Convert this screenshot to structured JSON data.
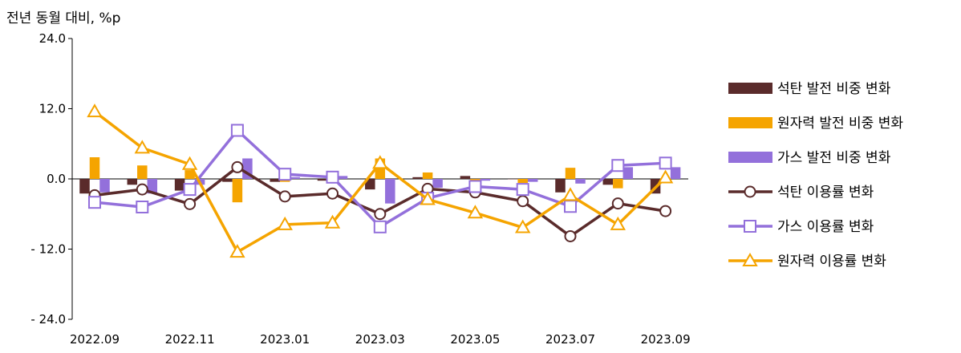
{
  "chart_data": {
    "type": "bar+line",
    "ylabel": "전년 동월 대비, %p",
    "ylim": [
      -24,
      24
    ],
    "yticks": [
      24,
      12,
      0,
      -12,
      -24
    ],
    "ytick_labels": [
      "24.0",
      "12.0",
      "0.0",
      "- 12.0",
      "- 24.0"
    ],
    "categories": [
      "2022.09",
      "2022.10",
      "2022.11",
      "2022.12",
      "2023.01",
      "2023.02",
      "2023.03",
      "2023.04",
      "2023.05",
      "2023.06",
      "2023.07",
      "2023.08",
      "2023.09"
    ],
    "xtick_labels": [
      "2022.09",
      "",
      "2022.11",
      "",
      "2023.01",
      "",
      "2023.03",
      "",
      "2023.05",
      "",
      "2023.07",
      "",
      "2023.09"
    ],
    "bar_series": [
      {
        "name": "석탄 발전 비중 변화",
        "color": "#5a2b2b",
        "values": [
          -2.5,
          -1.0,
          -2.0,
          -0.5,
          -0.5,
          -0.3,
          -1.8,
          0.3,
          0.5,
          0.0,
          -2.3,
          -1.0,
          -2.5
        ]
      },
      {
        "name": "원자력 발전 비중 변화",
        "color": "#f5a400",
        "values": [
          3.7,
          2.3,
          1.5,
          -4.0,
          -0.5,
          -0.3,
          3.5,
          1.1,
          -0.3,
          -0.7,
          1.9,
          -1.6,
          -0.3
        ]
      },
      {
        "name": "가스 발전 비중 변화",
        "color": "#9370db",
        "values": [
          -2.3,
          -2.5,
          -1.0,
          3.5,
          0.3,
          0.5,
          -4.2,
          -1.5,
          -0.3,
          -0.5,
          -0.8,
          2.0,
          2.0
        ]
      }
    ],
    "line_series": [
      {
        "name": "석탄 이용률 변화",
        "color": "#5a2b2b",
        "marker": "circle",
        "values": [
          -2.8,
          -1.8,
          -4.3,
          2.0,
          -3.0,
          -2.5,
          -6.0,
          -1.7,
          -2.3,
          -3.8,
          -9.8,
          -4.2,
          -5.5
        ]
      },
      {
        "name": "가스 이용률 변화",
        "color": "#9370db",
        "marker": "square",
        "values": [
          -4.0,
          -4.8,
          -1.8,
          8.3,
          0.8,
          0.3,
          -8.2,
          -3.3,
          -1.3,
          -1.8,
          -4.7,
          2.3,
          2.7
        ]
      },
      {
        "name": "원자력 이용률 변화",
        "color": "#f5a400",
        "marker": "triangle",
        "values": [
          11.5,
          5.3,
          2.5,
          -12.5,
          -7.8,
          -7.5,
          2.7,
          -3.5,
          -5.8,
          -8.3,
          -2.8,
          -7.8,
          0.2
        ]
      }
    ],
    "legend_position": "right"
  }
}
